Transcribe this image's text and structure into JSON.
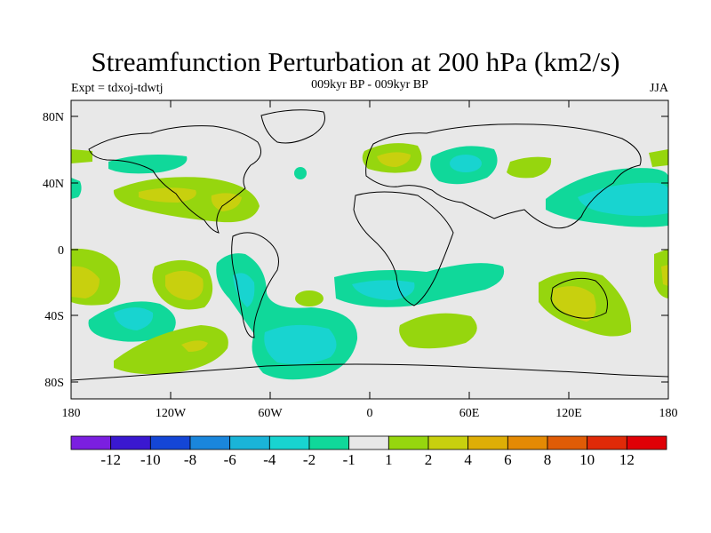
{
  "header": {
    "title": "Streamfunction Perturbation at 200 hPa (km2/s)",
    "experiment": "Expt = tdxoj-tdwtj",
    "subtitle": "009kyr BP - 009kyr BP",
    "season": "JJA"
  },
  "axes": {
    "lat_labels": [
      "80N",
      "40N",
      "0",
      "40S",
      "80S"
    ],
    "lon_labels": [
      "180",
      "120W",
      "60W",
      "0",
      "60E",
      "120E",
      "180"
    ]
  },
  "colorbar": {
    "labels": [
      "-12",
      "-10",
      "-8",
      "-6",
      "-4",
      "-2",
      "-1",
      "1",
      "2",
      "4",
      "6",
      "8",
      "10",
      "12"
    ],
    "colors": [
      "#7b1fe0",
      "#3a18d0",
      "#1446d6",
      "#1a86dc",
      "#1ab4d8",
      "#18d4d0",
      "#10d89a",
      "#e8e8e8",
      "#96d60e",
      "#c8d00e",
      "#deae06",
      "#e48a04",
      "#e05c06",
      "#e02a08",
      "#e00006"
    ]
  },
  "colors": {
    "ocean_fill": "#e8e8e8",
    "coast": "#000000"
  }
}
